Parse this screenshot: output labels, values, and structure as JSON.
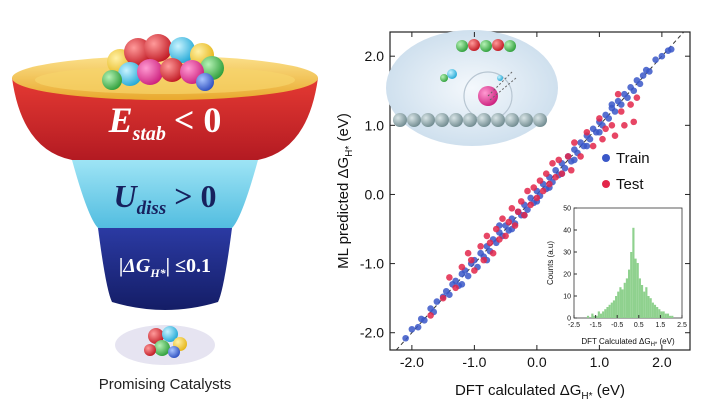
{
  "funnel": {
    "stage1": {
      "label": "E",
      "subscript": "stab",
      "relation": "< 0"
    },
    "stage2": {
      "label": "U",
      "subscript": "diss",
      "relation": "> 0"
    },
    "stage3": {
      "label": "|ΔG",
      "subscript": "H*",
      "relation": "| ≤0.1"
    },
    "caption": "Promising Catalysts",
    "colors": {
      "rim": "#f7c94a",
      "red": "#d8262b",
      "cyan": "#7fd6ef",
      "navy": "#1e2c86"
    }
  },
  "chart_data": {
    "type": "scatter",
    "xlabel": "DFT calculated ΔG",
    "xlabel_sub": "H*",
    "xlabel_unit": " (eV)",
    "ylabel": "ML predicted ΔG",
    "ylabel_sub": "H*",
    "ylabel_unit": " (eV)",
    "xlim": [
      -2.35,
      2.45
    ],
    "ylim": [
      -2.25,
      2.35
    ],
    "xticks": [
      "-2.0",
      "-1.0",
      "0.0",
      "1.0",
      "2.0"
    ],
    "yticks": [
      "-2.0",
      "-1.0",
      "0.0",
      "1.0",
      "2.0"
    ],
    "grid": false,
    "diagonal": "dashed y = x",
    "legend_position": "right",
    "series": [
      {
        "name": "Train",
        "color": "#3a57c8",
        "points": [
          [
            -2.1,
            -2.08
          ],
          [
            -2.0,
            -1.95
          ],
          [
            -1.9,
            -1.92
          ],
          [
            -1.85,
            -1.8
          ],
          [
            -1.8,
            -1.82
          ],
          [
            -1.7,
            -1.65
          ],
          [
            -1.65,
            -1.7
          ],
          [
            -1.6,
            -1.55
          ],
          [
            -1.5,
            -1.48
          ],
          [
            -1.45,
            -1.4
          ],
          [
            -1.4,
            -1.45
          ],
          [
            -1.35,
            -1.3
          ],
          [
            -1.3,
            -1.25
          ],
          [
            -1.25,
            -1.32
          ],
          [
            -1.2,
            -1.15
          ],
          [
            -1.15,
            -1.1
          ],
          [
            -1.1,
            -1.18
          ],
          [
            -1.05,
            -1.0
          ],
          [
            -1.0,
            -0.95
          ],
          [
            -0.95,
            -1.05
          ],
          [
            -0.9,
            -0.85
          ],
          [
            -0.85,
            -0.9
          ],
          [
            -0.8,
            -0.75
          ],
          [
            -0.75,
            -0.82
          ],
          [
            -0.7,
            -0.65
          ],
          [
            -0.65,
            -0.7
          ],
          [
            -0.6,
            -0.55
          ],
          [
            -0.55,
            -0.6
          ],
          [
            -0.5,
            -0.45
          ],
          [
            -0.45,
            -0.52
          ],
          [
            -0.4,
            -0.35
          ],
          [
            -0.35,
            -0.42
          ],
          [
            -0.3,
            -0.25
          ],
          [
            -0.25,
            -0.3
          ],
          [
            -0.2,
            -0.15
          ],
          [
            -0.15,
            -0.22
          ],
          [
            -0.1,
            -0.05
          ],
          [
            -0.05,
            -0.12
          ],
          [
            0.0,
            0.05
          ],
          [
            0.05,
            -0.02
          ],
          [
            0.1,
            0.15
          ],
          [
            0.15,
            0.08
          ],
          [
            0.2,
            0.25
          ],
          [
            0.25,
            0.18
          ],
          [
            0.3,
            0.35
          ],
          [
            0.35,
            0.28
          ],
          [
            0.4,
            0.45
          ],
          [
            0.45,
            0.38
          ],
          [
            0.5,
            0.55
          ],
          [
            0.55,
            0.48
          ],
          [
            0.6,
            0.65
          ],
          [
            0.65,
            0.6
          ],
          [
            0.7,
            0.75
          ],
          [
            0.75,
            0.7
          ],
          [
            0.8,
            0.85
          ],
          [
            0.85,
            0.8
          ],
          [
            0.9,
            0.95
          ],
          [
            0.95,
            0.9
          ],
          [
            1.0,
            1.05
          ],
          [
            1.05,
            1.0
          ],
          [
            1.1,
            1.15
          ],
          [
            1.15,
            1.1
          ],
          [
            1.2,
            1.25
          ],
          [
            1.25,
            1.2
          ],
          [
            1.3,
            1.35
          ],
          [
            1.35,
            1.3
          ],
          [
            1.4,
            1.45
          ],
          [
            1.45,
            1.4
          ],
          [
            1.5,
            1.55
          ],
          [
            1.55,
            1.5
          ],
          [
            1.6,
            1.65
          ],
          [
            1.65,
            1.6
          ],
          [
            1.7,
            1.72
          ],
          [
            1.75,
            1.8
          ],
          [
            1.8,
            1.78
          ],
          [
            1.9,
            1.95
          ],
          [
            2.0,
            2.0
          ],
          [
            2.1,
            2.08
          ],
          [
            2.15,
            2.1
          ],
          [
            -0.6,
            -0.45
          ],
          [
            -0.4,
            -0.5
          ],
          [
            -0.2,
            -0.3
          ],
          [
            0.0,
            -0.1
          ],
          [
            0.2,
            0.1
          ],
          [
            0.4,
            0.3
          ],
          [
            0.6,
            0.5
          ],
          [
            0.8,
            0.7
          ],
          [
            -1.2,
            -1.3
          ],
          [
            -0.8,
            -0.95
          ],
          [
            1.0,
            0.9
          ],
          [
            1.2,
            1.3
          ]
        ]
      },
      {
        "name": "Test",
        "color": "#e3264a",
        "points": [
          [
            -1.7,
            -1.75
          ],
          [
            -1.5,
            -1.5
          ],
          [
            -1.3,
            -1.35
          ],
          [
            -1.2,
            -1.05
          ],
          [
            -1.1,
            -0.85
          ],
          [
            -1.05,
            -0.95
          ],
          [
            -1.0,
            -1.1
          ],
          [
            -0.9,
            -0.75
          ],
          [
            -0.85,
            -0.95
          ],
          [
            -0.8,
            -0.6
          ],
          [
            -0.75,
            -0.7
          ],
          [
            -0.7,
            -0.85
          ],
          [
            -0.65,
            -0.5
          ],
          [
            -0.6,
            -0.65
          ],
          [
            -0.55,
            -0.35
          ],
          [
            -0.5,
            -0.6
          ],
          [
            -0.45,
            -0.4
          ],
          [
            -0.4,
            -0.2
          ],
          [
            -0.35,
            -0.45
          ],
          [
            -0.3,
            -0.25
          ],
          [
            -0.25,
            -0.1
          ],
          [
            -0.2,
            -0.3
          ],
          [
            -0.15,
            0.05
          ],
          [
            -0.1,
            -0.15
          ],
          [
            -0.05,
            0.1
          ],
          [
            0.0,
            -0.05
          ],
          [
            0.05,
            0.2
          ],
          [
            0.1,
            0.05
          ],
          [
            0.15,
            0.3
          ],
          [
            0.2,
            0.15
          ],
          [
            0.25,
            0.45
          ],
          [
            0.3,
            0.25
          ],
          [
            0.35,
            0.5
          ],
          [
            0.4,
            0.3
          ],
          [
            0.5,
            0.55
          ],
          [
            0.55,
            0.35
          ],
          [
            0.6,
            0.75
          ],
          [
            0.7,
            0.55
          ],
          [
            0.8,
            0.9
          ],
          [
            0.9,
            0.7
          ],
          [
            1.0,
            1.1
          ],
          [
            1.05,
            0.8
          ],
          [
            1.1,
            0.95
          ],
          [
            1.2,
            1.0
          ],
          [
            1.3,
            1.45
          ],
          [
            1.35,
            1.2
          ],
          [
            1.4,
            1.0
          ],
          [
            1.5,
            1.3
          ],
          [
            1.55,
            1.05
          ],
          [
            1.6,
            1.4
          ],
          [
            1.25,
            0.85
          ],
          [
            -1.4,
            -1.2
          ]
        ]
      }
    ],
    "inset": {
      "type": "histogram",
      "xlabel": "DFT Calculated ΔG",
      "xlabel_sub": "H*",
      "xlabel_unit": " (eV)",
      "ylabel": "Counts (a.u)",
      "xticks": [
        "-2.5",
        "-1.5",
        "-0.5",
        "0.5",
        "1.5",
        "2.5"
      ],
      "yticks": [
        "0",
        "10",
        "20",
        "30",
        "40",
        "50"
      ],
      "xlim": [
        -2.5,
        2.5
      ],
      "ylim": [
        0,
        50
      ],
      "color": "#8fd18e",
      "bin_width": 0.1,
      "bin_start": -1.9,
      "counts": [
        1,
        0,
        2,
        1,
        1,
        3,
        2,
        3,
        4,
        5,
        6,
        7,
        8,
        10,
        12,
        14,
        13,
        16,
        18,
        22,
        30,
        41,
        27,
        25,
        18,
        15,
        12,
        14,
        10,
        9,
        7,
        6,
        5,
        4,
        3,
        3,
        2,
        2,
        1,
        1
      ]
    }
  }
}
